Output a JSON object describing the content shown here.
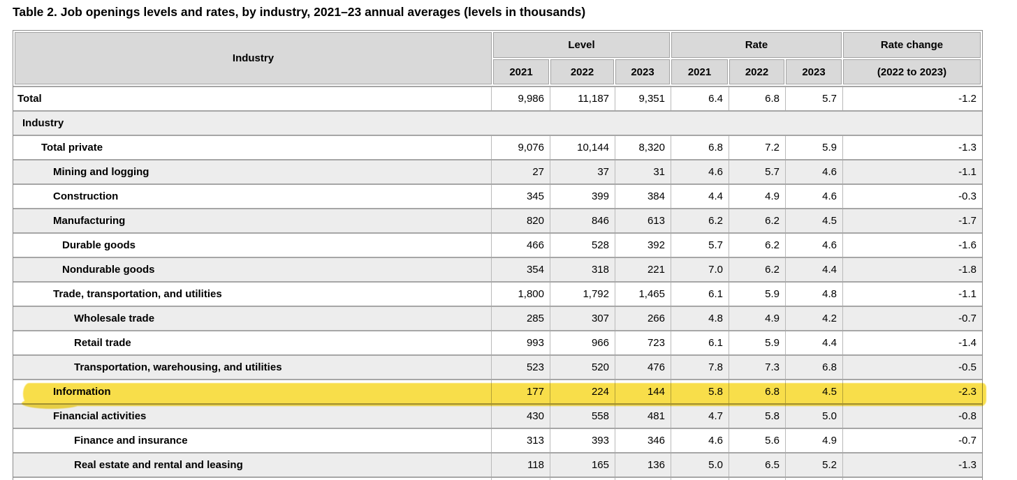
{
  "title": "Table 2. Job openings levels and rates, by industry, 2021–23 annual averages (levels in thousands)",
  "colors": {
    "highlight": "#f8de4a",
    "header_bg": "#d9d9d9",
    "row_stripe": "#ededed"
  },
  "table": {
    "industry_header": "Industry",
    "group_headers": [
      {
        "label": "Level"
      },
      {
        "label": "Rate"
      },
      {
        "label": "Rate change"
      }
    ],
    "year_headers": [
      "2021",
      "2022",
      "2023",
      "2021",
      "2022",
      "2023",
      "(2022 to 2023)"
    ],
    "column_keys": [
      "level-2021",
      "level-2022",
      "level-2023",
      "rate-2021",
      "rate-2022",
      "rate-2023",
      "rate-change"
    ],
    "rows": [
      {
        "label": "Total",
        "indent": 0,
        "section": false,
        "highlight": false,
        "values": [
          "9,986",
          "11,187",
          "9,351",
          "6.4",
          "6.8",
          "5.7",
          "-1.2"
        ]
      },
      {
        "label": "Industry",
        "indent": 0,
        "section": true,
        "highlight": false,
        "values": []
      },
      {
        "label": "Total private",
        "indent": 1,
        "section": false,
        "highlight": false,
        "values": [
          "9,076",
          "10,144",
          "8,320",
          "6.8",
          "7.2",
          "5.9",
          "-1.3"
        ]
      },
      {
        "label": "Mining and logging",
        "indent": 2,
        "section": false,
        "highlight": false,
        "values": [
          "27",
          "37",
          "31",
          "4.6",
          "5.7",
          "4.6",
          "-1.1"
        ]
      },
      {
        "label": "Construction",
        "indent": 2,
        "section": false,
        "highlight": false,
        "values": [
          "345",
          "399",
          "384",
          "4.4",
          "4.9",
          "4.6",
          "-0.3"
        ]
      },
      {
        "label": "Manufacturing",
        "indent": 2,
        "section": false,
        "highlight": false,
        "values": [
          "820",
          "846",
          "613",
          "6.2",
          "6.2",
          "4.5",
          "-1.7"
        ]
      },
      {
        "label": "Durable goods",
        "indent": 3,
        "section": false,
        "highlight": false,
        "values": [
          "466",
          "528",
          "392",
          "5.7",
          "6.2",
          "4.6",
          "-1.6"
        ]
      },
      {
        "label": "Nondurable goods",
        "indent": 3,
        "section": false,
        "highlight": false,
        "values": [
          "354",
          "318",
          "221",
          "7.0",
          "6.2",
          "4.4",
          "-1.8"
        ]
      },
      {
        "label": "Trade, transportation, and utilities",
        "indent": 2,
        "section": false,
        "highlight": false,
        "values": [
          "1,800",
          "1,792",
          "1,465",
          "6.1",
          "5.9",
          "4.8",
          "-1.1"
        ]
      },
      {
        "label": "Wholesale trade",
        "indent": 4,
        "section": false,
        "highlight": false,
        "values": [
          "285",
          "307",
          "266",
          "4.8",
          "4.9",
          "4.2",
          "-0.7"
        ]
      },
      {
        "label": "Retail trade",
        "indent": 4,
        "section": false,
        "highlight": false,
        "values": [
          "993",
          "966",
          "723",
          "6.1",
          "5.9",
          "4.4",
          "-1.4"
        ]
      },
      {
        "label": "Transportation, warehousing, and utilities",
        "indent": 4,
        "section": false,
        "highlight": false,
        "values": [
          "523",
          "520",
          "476",
          "7.8",
          "7.3",
          "6.8",
          "-0.5"
        ]
      },
      {
        "label": "Information",
        "indent": 2,
        "section": false,
        "highlight": true,
        "values": [
          "177",
          "224",
          "144",
          "5.8",
          "6.8",
          "4.5",
          "-2.3"
        ]
      },
      {
        "label": "Financial activities",
        "indent": 2,
        "section": false,
        "highlight": false,
        "values": [
          "430",
          "558",
          "481",
          "4.7",
          "5.8",
          "5.0",
          "-0.8"
        ]
      },
      {
        "label": "Finance and insurance",
        "indent": 4,
        "section": false,
        "highlight": false,
        "values": [
          "313",
          "393",
          "346",
          "4.6",
          "5.6",
          "4.9",
          "-0.7"
        ]
      },
      {
        "label": "Real estate and rental and leasing",
        "indent": 4,
        "section": false,
        "highlight": false,
        "values": [
          "118",
          "165",
          "136",
          "5.0",
          "6.5",
          "5.2",
          "-1.3"
        ]
      },
      {
        "label": "",
        "indent": 0,
        "section": false,
        "highlight": false,
        "partial": true,
        "values": [
          "",
          "",
          "",
          "",
          "",
          "",
          ""
        ]
      }
    ]
  }
}
